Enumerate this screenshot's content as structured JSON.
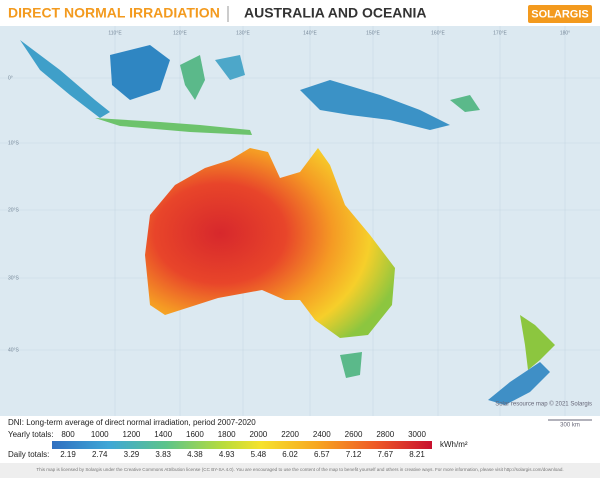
{
  "header": {
    "title": "DIRECT NORMAL IRRADIATION",
    "region": "AUSTRALIA AND OCEANIA",
    "logo": "SOLARGIS"
  },
  "map": {
    "longitude_labels": [
      "110°E",
      "120°E",
      "130°E",
      "140°E",
      "150°E",
      "160°E",
      "170°E",
      "180°"
    ],
    "latitude_labels": [
      "0°",
      "10°S",
      "20°S",
      "30°S",
      "40°S"
    ],
    "credit": "Solar resource map © 2021 Solargis",
    "scale": "300 km"
  },
  "legend": {
    "description": "DNI: Long-term average of direct normal irradiation, period 2007-2020",
    "yearly_label": "Yearly totals:",
    "yearly": [
      800,
      1000,
      1200,
      1400,
      1600,
      1800,
      2000,
      2200,
      2400,
      2600,
      2800,
      3000
    ],
    "daily_label": "Daily totals:",
    "daily": [
      2.19,
      2.74,
      3.29,
      3.83,
      4.38,
      4.93,
      5.48,
      6.02,
      6.57,
      7.12,
      7.67,
      8.21
    ],
    "unit": "kWh/m²"
  },
  "license": "This map is licensed by Solargis under the Creative Commons Attribution license (CC BY-SA 4.0). You are encouraged to use the content of the map to benefit yourself and others in creative ways. For more information, please visit http://solargis.com/download."
}
